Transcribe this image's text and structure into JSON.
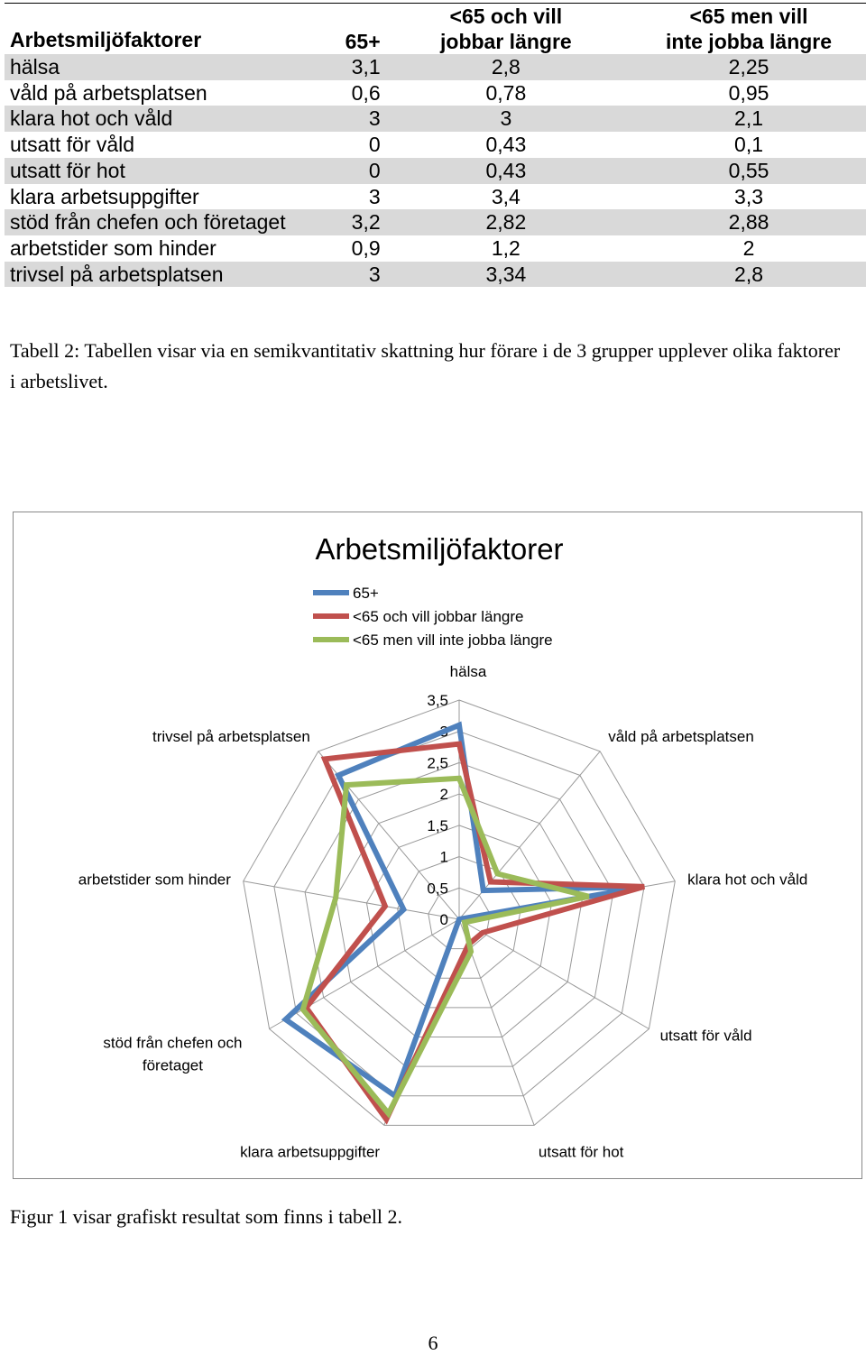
{
  "table": {
    "headers": [
      [
        "Arbetsmiljöfaktorer"
      ],
      [
        "65+"
      ],
      [
        "<65 och vill",
        "jobbar längre"
      ],
      [
        "<65 men vill",
        "inte jobba längre"
      ]
    ],
    "rows": [
      [
        "hälsa",
        "3,1",
        "2,8",
        "2,25"
      ],
      [
        "våld på arbetsplatsen",
        "0,6",
        "0,78",
        "0,95"
      ],
      [
        "klara hot och våld",
        "3",
        "3",
        "2,1"
      ],
      [
        "utsatt för våld",
        "0",
        "0,43",
        "0,1"
      ],
      [
        "utsatt för hot",
        "0",
        "0,43",
        "0,55"
      ],
      [
        "klara arbetsuppgifter",
        "3",
        "3,4",
        "3,3"
      ],
      [
        "stöd från chefen och företaget",
        "3,2",
        "2,82",
        "2,88"
      ],
      [
        "arbetstider som hinder",
        "0,9",
        "1,2",
        "2"
      ],
      [
        "trivsel på arbetsplatsen",
        "3",
        "3,34",
        "2,8"
      ]
    ]
  },
  "table_caption": "Tabell 2: Tabellen visar via en semikvantitativ skattning hur förare i de 3 grupper upplever olika faktorer i arbetslivet.",
  "chart_data": {
    "type": "radar",
    "title": "Arbetsmiljöfaktorer",
    "categories": [
      "hälsa",
      "våld på arbetsplatsen",
      "klara hot och våld",
      "utsatt för våld",
      "utsatt för hot",
      "klara arbetsuppgifter",
      "stöd från chefen och företaget",
      "arbetstider som hinder",
      "trivsel på arbetsplatsen"
    ],
    "category_lines": [
      [
        "hälsa"
      ],
      [
        "våld på arbetsplatsen"
      ],
      [
        "klara hot och våld"
      ],
      [
        "utsatt för våld"
      ],
      [
        "utsatt för hot"
      ],
      [
        "klara arbetsuppgifter"
      ],
      [
        "stöd från chefen och",
        "företaget"
      ],
      [
        "arbetstider som hinder"
      ],
      [
        "trivsel på arbetsplatsen"
      ]
    ],
    "series": [
      {
        "name": "65+",
        "color": "#4f81bd",
        "values": [
          3.1,
          0.6,
          3,
          0,
          0,
          3,
          3.2,
          0.9,
          3
        ]
      },
      {
        "name": "<65 och vill jobbar längre",
        "color": "#c0504d",
        "values": [
          2.8,
          0.78,
          3,
          0.43,
          0.43,
          3.4,
          2.82,
          1.2,
          3.34
        ]
      },
      {
        "name": "<65 men vill inte jobba längre",
        "color": "#9bbb59",
        "values": [
          2.25,
          0.95,
          2.1,
          0.1,
          0.55,
          3.3,
          2.88,
          2,
          2.8
        ]
      }
    ],
    "rlim": [
      0,
      3.5
    ],
    "ticks": [
      0,
      0.5,
      1,
      1.5,
      2,
      2.5,
      3,
      3.5
    ],
    "tick_labels": [
      "0",
      "0,5",
      "1",
      "1,5",
      "2",
      "2,5",
      "3",
      "3,5"
    ],
    "legend": "top",
    "grid": true
  },
  "figure_caption": "Figur 1 visar grafiskt resultat som finns i tabell 2.",
  "page_number": "6"
}
